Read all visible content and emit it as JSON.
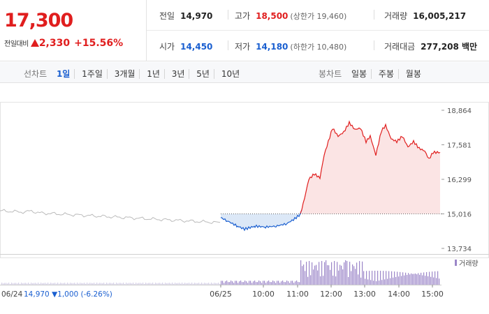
{
  "quote": {
    "price": "17,300",
    "change_label": "전일대비",
    "change_amount": "2,330",
    "change_percent": "+15.56%"
  },
  "stats": {
    "prev_close_label": "전일",
    "prev_close": "14,970",
    "high_label": "고가",
    "high": "18,500",
    "upper_limit": "(상한가 19,460)",
    "volume_label": "거래량",
    "volume": "16,005,217",
    "open_label": "시가",
    "open": "14,450",
    "low_label": "저가",
    "low": "14,180",
    "lower_limit": "(하한가 10,480)",
    "value_label": "거래대금",
    "value": "277,208 백만"
  },
  "line_tabs": {
    "title": "선차트",
    "items": [
      "1일",
      "1주일",
      "3개월",
      "1년",
      "3년",
      "5년",
      "10년"
    ],
    "active": "1일"
  },
  "candle_tabs": {
    "title": "봉차트",
    "items": [
      "일봉",
      "주봉",
      "월봉"
    ]
  },
  "colors": {
    "up": "#e01e1e",
    "down": "#1a5fd0",
    "prev_line": "#bbbbbb",
    "volume": "#9b86c8"
  },
  "chart_data": {
    "type": "line",
    "y_ticks": [
      "18,864",
      "17,581",
      "16,299",
      "15,016",
      "13,734"
    ],
    "ylim": [
      13734,
      18864
    ],
    "reference_value": 15016,
    "volume_legend": "거래량",
    "prev_day_label": "06/24",
    "prev_day_summary": "14,970 ▼1,000 (-6.26%)",
    "x_labels": [
      "06/25",
      "10:00",
      "11:00",
      "12:00",
      "13:00",
      "14:00",
      "15:00"
    ],
    "series": [
      {
        "x": [
          "06/24",
          "06/25 09:10",
          "06/25 09:30",
          "06/25 10:00",
          "06/25 10:30",
          "06/25 11:00",
          "06/25 11:10",
          "06/25 11:30",
          "06/25 12:00",
          "06/25 12:30",
          "06/25 13:00",
          "06/25 13:30",
          "06/25 14:00",
          "06/25 14:30",
          "06/25 15:00"
        ],
        "values": [
          15100,
          14700,
          14300,
          14450,
          14500,
          14900,
          16300,
          17500,
          18300,
          18000,
          17800,
          18100,
          17700,
          17550,
          17300
        ]
      }
    ]
  }
}
